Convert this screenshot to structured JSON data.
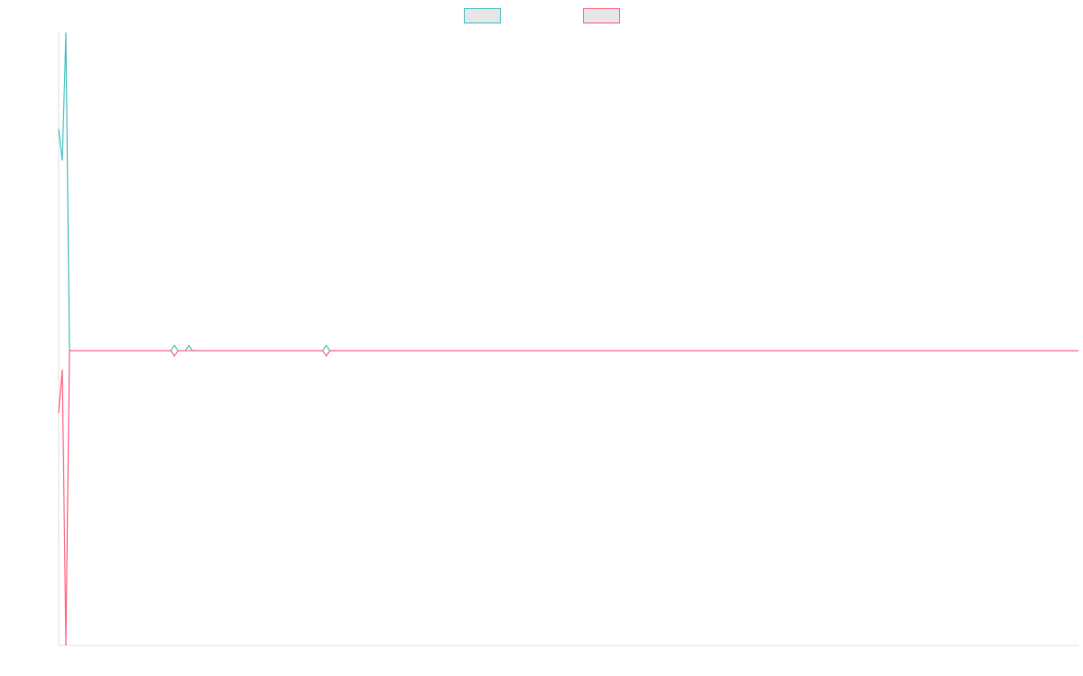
{
  "chart_data": {
    "type": "line",
    "xlim": [
      0,
      282
    ],
    "ylim": [
      -1,
      1.08
    ],
    "legend": "top",
    "series": [
      {
        "color": "#4bc0c0",
        "x": [
          0,
          1,
          2,
          3,
          31,
          32,
          33,
          35,
          36,
          37,
          73,
          74,
          75,
          282
        ],
        "values": [
          0.752,
          0.645,
          1.08,
          0,
          0,
          0.018,
          0,
          0,
          0.018,
          0,
          0,
          0.018,
          0,
          0
        ]
      },
      {
        "color": "#ff6384",
        "x": [
          0,
          1,
          2,
          3,
          31,
          32,
          33,
          73,
          74,
          75,
          282
        ],
        "values": [
          -0.211,
          -0.064,
          -1,
          0,
          0,
          -0.018,
          0,
          0,
          -0.018,
          0,
          0
        ]
      }
    ]
  }
}
